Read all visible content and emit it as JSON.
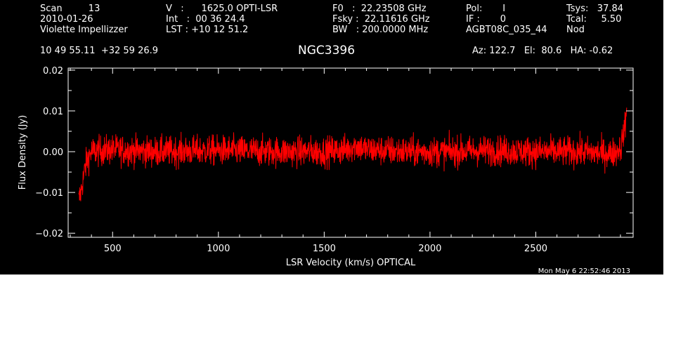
{
  "header": {
    "col1": [
      "Scan         13",
      "2010-01-26",
      "Violette Impellizzer"
    ],
    "col2": [
      "V   :      1625.0 OPTI-LSR",
      "Int   :  00 36 24.4",
      "LST : +10 12 51.2"
    ],
    "col3": [
      "F0   :  22.23508 GHz",
      "Fsky :  22.11616 GHz",
      "BW   : 200.0000 MHz"
    ],
    "col4": [
      "Pol:       I",
      "IF :       0",
      "AGBT08C_035_44"
    ],
    "col5": [
      "Tsys:   37.84",
      "Tcal:     5.50",
      "Nod"
    ],
    "coordinates": "10 49 55.11  +32 59 26.9",
    "source": "NGC3396",
    "pointing": "Az: 122.7   El:  80.6   HA: -0.62",
    "timestamp": "Mon May  6 22:52:46 2013"
  },
  "colors": {
    "background": "#000000",
    "axes": "#ffffff",
    "trace": "#ff0000"
  },
  "chart_data": {
    "type": "line",
    "xlabel": "LSR Velocity (km/s) OPTICAL",
    "ylabel": "Flux Density (Jy)",
    "xlim": [
      290,
      2960
    ],
    "ylim": [
      -0.021,
      0.0205
    ],
    "xticks": [
      500,
      1000,
      1500,
      2000,
      2500
    ],
    "xtick_labels": [
      "500",
      "1000",
      "1500",
      "2000",
      "2500"
    ],
    "yticks": [
      -0.02,
      -0.01,
      0.0,
      0.01,
      0.02
    ],
    "ytick_labels": [
      "−0.02",
      "−0.01",
      "0.00",
      "0.01",
      "0.02"
    ],
    "grid": false,
    "series": [
      {
        "color": "#ff0000",
        "noise_rms": 0.0018,
        "x": [
          340,
          350,
          360,
          370,
          380,
          400,
          500,
          700,
          1000,
          1300,
          1500,
          1600,
          1650,
          1700,
          1900,
          2100,
          2300,
          2500,
          2700,
          2850,
          2880,
          2900,
          2910,
          2920,
          2930
        ],
        "y": [
          -0.012,
          -0.01,
          -0.007,
          -0.004,
          -0.002,
          0.0,
          0.0005,
          0.0,
          0.0003,
          0.0,
          0.0,
          0.0005,
          0.0015,
          0.0005,
          0.0,
          0.0,
          0.0003,
          0.0,
          0.0,
          -0.0005,
          0.0,
          0.001,
          0.003,
          0.006,
          0.01
        ]
      }
    ]
  }
}
